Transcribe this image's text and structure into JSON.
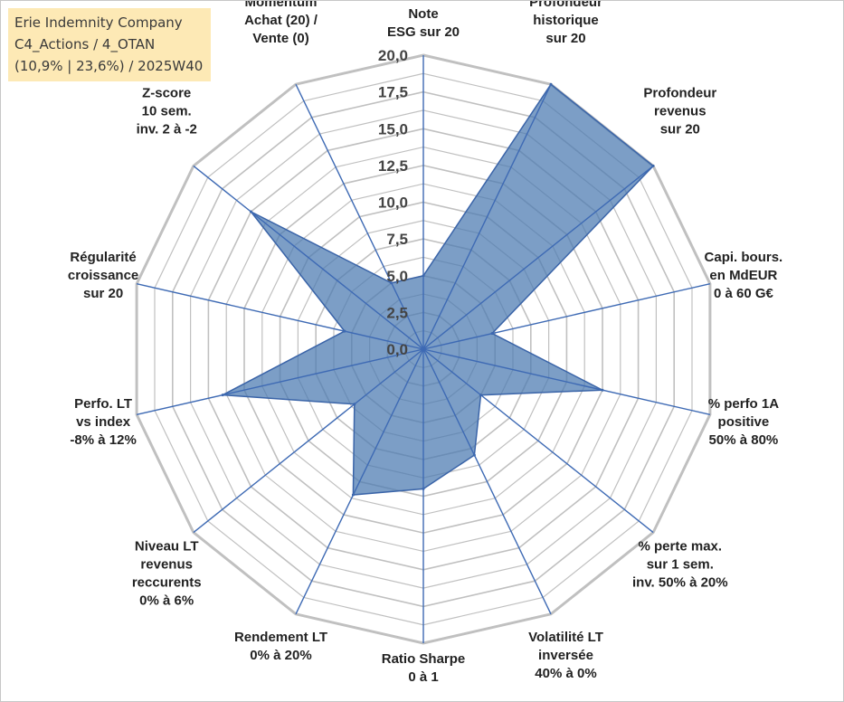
{
  "title_box": {
    "line1": "Erie Indemnity Company",
    "line2": "C4_Actions / 4_OTAN",
    "line3": "(10,9% | 23,6%) / 2025W40"
  },
  "colors": {
    "fill": "#4a78b0",
    "stroke": "#3a64a8",
    "grid": "#c0c0c0",
    "spoke": "#3e6ab4",
    "title_bg": "#fde9b5"
  },
  "chart_data": {
    "type": "radar",
    "title": "Erie Indemnity Company",
    "rlim": [
      0,
      20
    ],
    "ticks": [
      "0,0",
      "2,5",
      "5,0",
      "7,5",
      "10,0",
      "12,5",
      "15,0",
      "17,5",
      "20,0"
    ],
    "tick_values": [
      0,
      2.5,
      5,
      7.5,
      10,
      12.5,
      15,
      17.5,
      20
    ],
    "axes": [
      {
        "label": [
          "Note",
          "ESG sur 20"
        ],
        "value": 5.0
      },
      {
        "label": [
          "Profondeur",
          "historique",
          "sur 20"
        ],
        "value": 20.0
      },
      {
        "label": [
          "Profondeur",
          "revenus",
          "sur 20"
        ],
        "value": 20.0
      },
      {
        "label": [
          "Capi. bours.",
          "en MdEUR",
          "0 à 60 G€"
        ],
        "value": 4.8
      },
      {
        "label": [
          "% perfo 1A",
          "positive",
          "50% à 80%"
        ],
        "value": 12.5
      },
      {
        "label": [
          "% perte max.",
          "sur 1 sem.",
          "inv. 50% à 20%"
        ],
        "value": 5.0
      },
      {
        "label": [
          "Volatilité LT",
          "inversée",
          "40% à 0%"
        ],
        "value": 8.0
      },
      {
        "label": [
          "Ratio Sharpe",
          "0 à 1"
        ],
        "value": 9.5
      },
      {
        "label": [
          "Rendement LT",
          "0% à 20%"
        ],
        "value": 11.0
      },
      {
        "label": [
          "Niveau LT",
          "revenus",
          "reccurents",
          "0% à 6%"
        ],
        "value": 6.0
      },
      {
        "label": [
          "Perfo. LT",
          "vs index",
          "-8% à 12%"
        ],
        "value": 14.0
      },
      {
        "label": [
          "Régularité",
          "croissance",
          "sur 20"
        ],
        "value": 5.5
      },
      {
        "label": [
          "Z-score",
          "10 sem.",
          "inv. 2 à -2"
        ],
        "value": 15.0
      },
      {
        "label": [
          "Momentum",
          "Achat (20) /",
          "Vente (0)"
        ],
        "value": 5.0
      }
    ]
  }
}
